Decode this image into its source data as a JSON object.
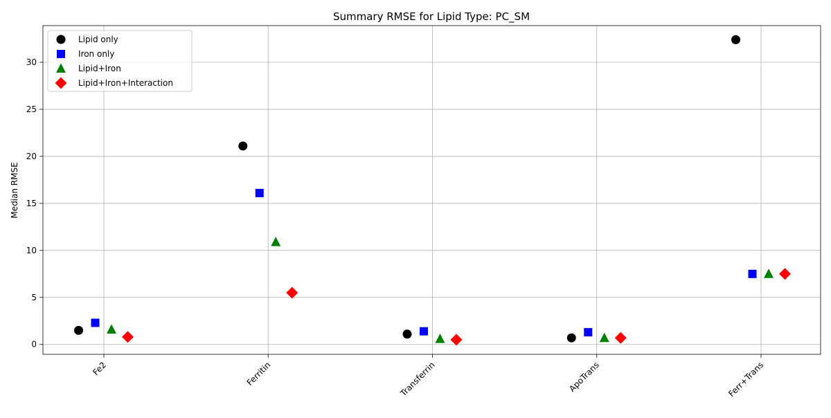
{
  "chart_data": {
    "type": "scatter",
    "title": "Summary RMSE for Lipid Type: PC_SM",
    "xlabel": "",
    "ylabel": "Median RMSE",
    "categories": [
      "Fe2",
      "Ferritin",
      "Transferrin",
      "ApoTrans",
      "Ferr+Trans"
    ],
    "ylim": [
      -1.05,
      33.9
    ],
    "yticks": [
      0,
      5,
      10,
      15,
      20,
      25,
      30
    ],
    "grid": true,
    "legend_position": "top-left",
    "series": [
      {
        "name": "Lipid only",
        "marker": "circle",
        "color": "#000000",
        "values": [
          1.5,
          21.1,
          1.1,
          0.7,
          32.4
        ]
      },
      {
        "name": "Iron only",
        "marker": "square",
        "color": "#0000ff",
        "values": [
          2.3,
          16.1,
          1.4,
          1.3,
          7.5
        ]
      },
      {
        "name": "Lipid+Iron",
        "marker": "triangle",
        "color": "#008000",
        "values": [
          1.6,
          10.9,
          0.6,
          0.7,
          7.5
        ]
      },
      {
        "name": "Lipid+Iron+Interaction",
        "marker": "diamond",
        "color": "#ff0000",
        "values": [
          0.8,
          5.5,
          0.5,
          0.7,
          7.5
        ]
      }
    ]
  }
}
